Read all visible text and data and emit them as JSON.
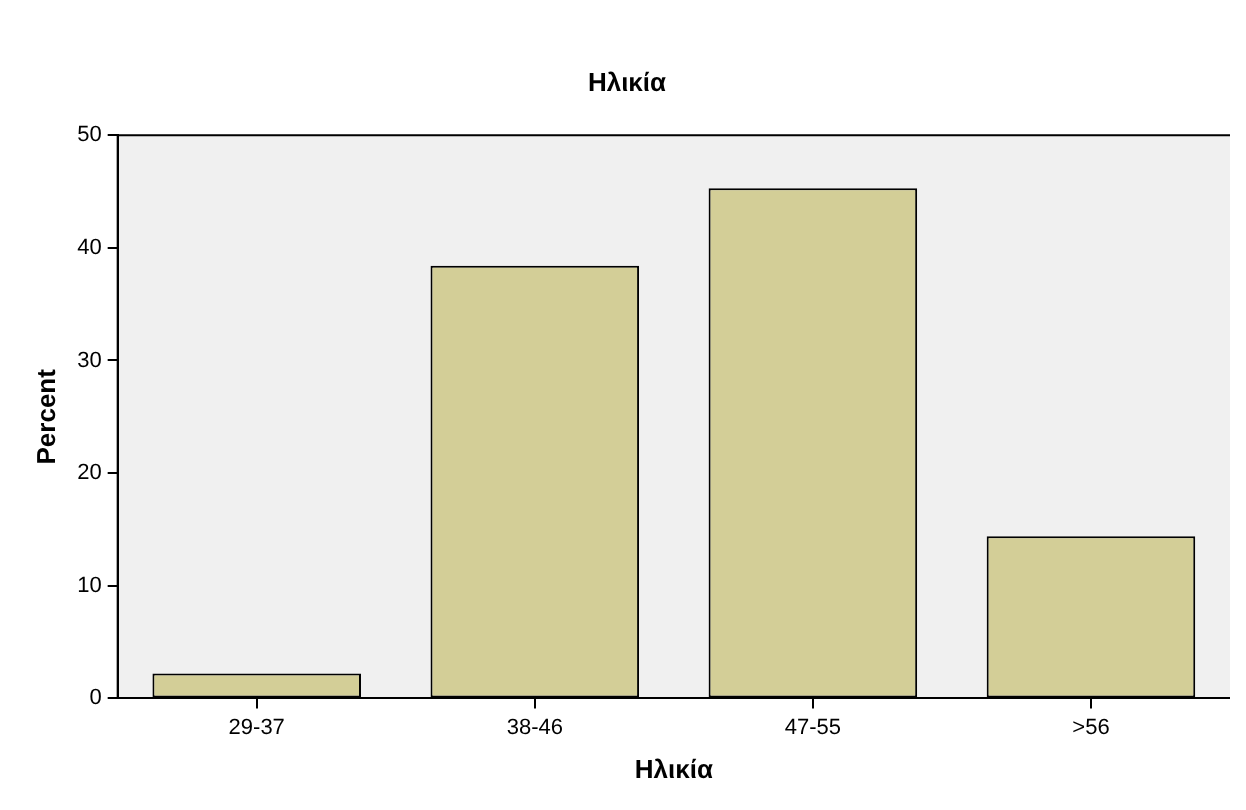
{
  "chart_data": {
    "type": "bar",
    "title": "Ηλικία",
    "xlabel": "Ηλικία",
    "ylabel": "Percent",
    "categories": [
      "29-37",
      "38-46",
      "47-55",
      ">56"
    ],
    "values": [
      2.2,
      38.4,
      45.3,
      14.4
    ],
    "color": "#d3ce97",
    "ylim": [
      0,
      50
    ],
    "yticks": [
      0,
      10,
      20,
      30,
      40,
      50
    ],
    "grid": false,
    "legend": false
  }
}
